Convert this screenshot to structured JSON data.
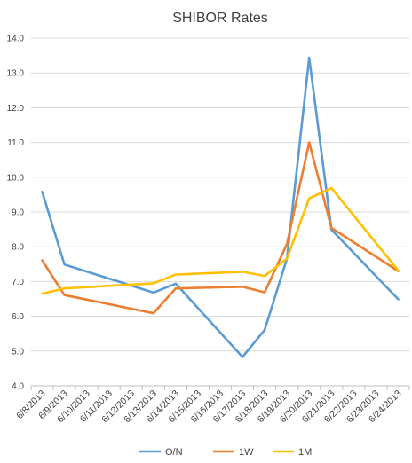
{
  "chart_data": {
    "type": "line",
    "title": "SHIBOR Rates",
    "xlabel": "",
    "ylabel": "",
    "categories": [
      "6/8/2013",
      "6/9/2013",
      "6/10/2013",
      "6/11/2013",
      "6/12/2013",
      "6/13/2013",
      "6/14/2013",
      "6/15/2013",
      "6/16/2013",
      "6/17/2013",
      "6/18/2013",
      "6/19/2013",
      "6/20/2013",
      "6/21/2013",
      "6/22/2013",
      "6/23/2013",
      "6/24/2013"
    ],
    "ylim": [
      4.0,
      14.0
    ],
    "yticks": [
      "4.0",
      "5.0",
      "6.0",
      "7.0",
      "8.0",
      "9.0",
      "10.0",
      "11.0",
      "12.0",
      "13.0",
      "14.0"
    ],
    "grid": true,
    "legend_position": "bottom",
    "series": [
      {
        "name": "O/N",
        "color": "#5B9BD5",
        "points": [
          {
            "x": "6/8/2013",
            "y": 9.58
          },
          {
            "x": "6/9/2013",
            "y": 7.49
          },
          {
            "x": "6/13/2013",
            "y": 6.68
          },
          {
            "x": "6/14/2013",
            "y": 6.94
          },
          {
            "x": "6/17/2013",
            "y": 4.83
          },
          {
            "x": "6/18/2013",
            "y": 5.61
          },
          {
            "x": "6/19/2013",
            "y": 7.66
          },
          {
            "x": "6/20/2013",
            "y": 13.44
          },
          {
            "x": "6/21/2013",
            "y": 8.49
          },
          {
            "x": "6/24/2013",
            "y": 6.49
          }
        ]
      },
      {
        "name": "1W",
        "color": "#ED7D31",
        "points": [
          {
            "x": "6/8/2013",
            "y": 7.61
          },
          {
            "x": "6/9/2013",
            "y": 6.61
          },
          {
            "x": "6/13/2013",
            "y": 6.09
          },
          {
            "x": "6/14/2013",
            "y": 6.8
          },
          {
            "x": "6/17/2013",
            "y": 6.85
          },
          {
            "x": "6/18/2013",
            "y": 6.69
          },
          {
            "x": "6/19/2013",
            "y": 8.08
          },
          {
            "x": "6/20/2013",
            "y": 11.0
          },
          {
            "x": "6/21/2013",
            "y": 8.54
          },
          {
            "x": "6/24/2013",
            "y": 7.3
          }
        ]
      },
      {
        "name": "1M",
        "color": "#FFC000",
        "points": [
          {
            "x": "6/8/2013",
            "y": 6.65
          },
          {
            "x": "6/9/2013",
            "y": 6.8
          },
          {
            "x": "6/13/2013",
            "y": 6.95
          },
          {
            "x": "6/14/2013",
            "y": 7.2
          },
          {
            "x": "6/17/2013",
            "y": 7.28
          },
          {
            "x": "6/18/2013",
            "y": 7.16
          },
          {
            "x": "6/19/2013",
            "y": 7.66
          },
          {
            "x": "6/20/2013",
            "y": 9.39
          },
          {
            "x": "6/21/2013",
            "y": 9.69
          },
          {
            "x": "6/24/2013",
            "y": 7.32
          }
        ]
      }
    ]
  }
}
